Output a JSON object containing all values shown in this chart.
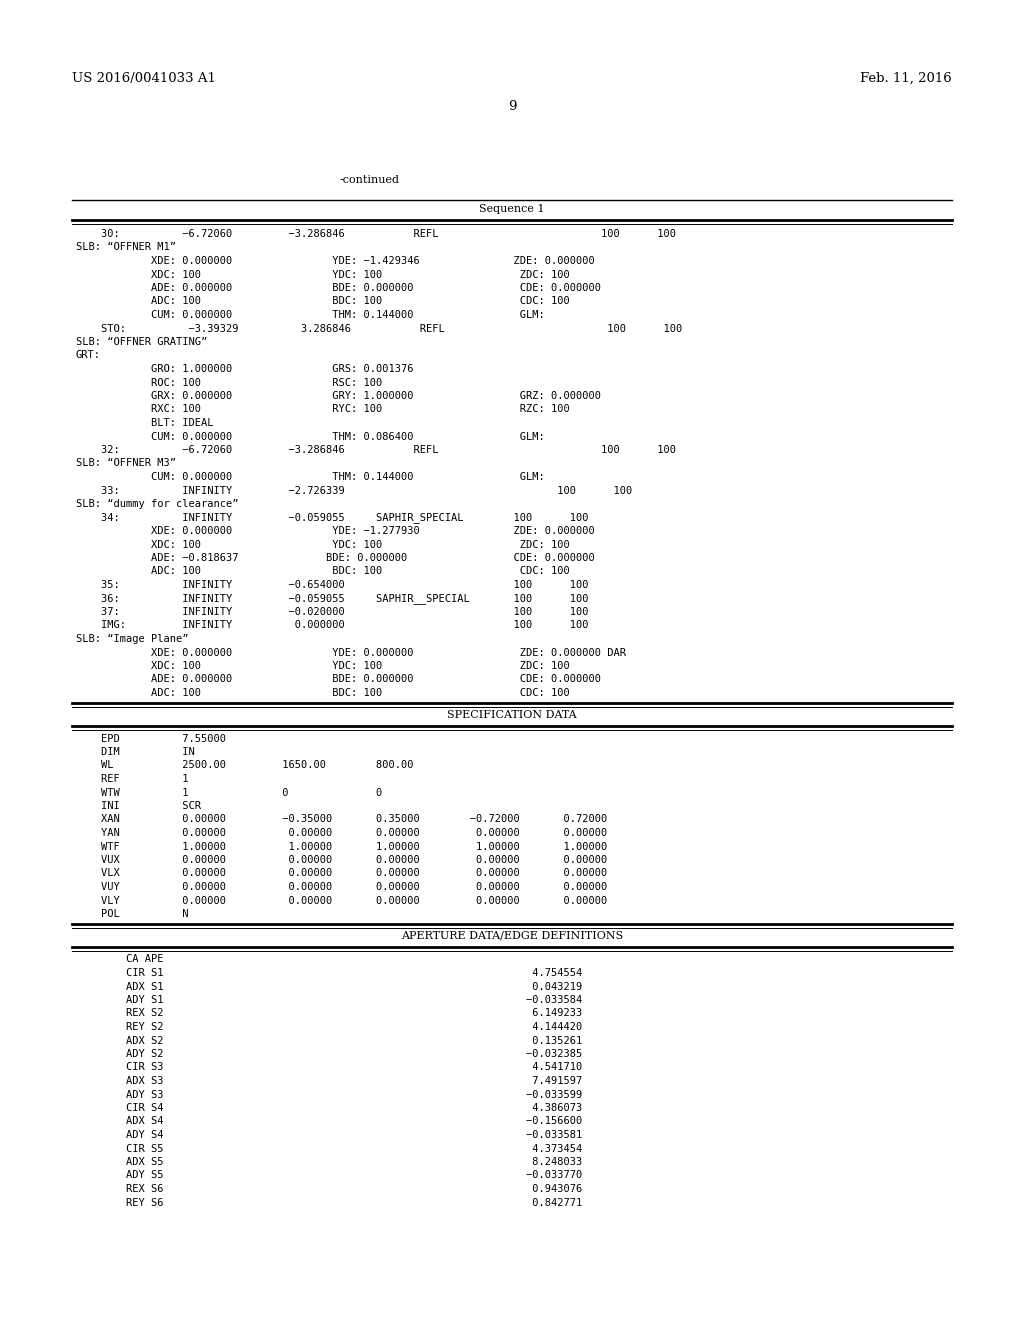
{
  "header_left": "US 2016/0041033 A1",
  "header_right": "Feb. 11, 2016",
  "page_number": "9",
  "continued_label": "-continued",
  "bg_color": "#ffffff",
  "text_color": "#000000",
  "section1_title": "Sequence 1",
  "content_lines": [
    [
      "    30:          −6.72060         −3.286846           REFL                          100      100",
      false
    ],
    [
      "SLB: “OFFNER M1”",
      false
    ],
    [
      "            XDE: 0.000000                YDE: −1.429346               ZDE: 0.000000",
      false
    ],
    [
      "            XDC: 100                     YDC: 100                      ZDC: 100",
      false
    ],
    [
      "            ADE: 0.000000                BDE: 0.000000                 CDE: 0.000000",
      false
    ],
    [
      "            ADC: 100                     BDC: 100                      CDC: 100",
      false
    ],
    [
      "            CUM: 0.000000                THM: 0.144000                 GLM:",
      false
    ],
    [
      "    STO:          −3.39329          3.286846           REFL                          100      100",
      false
    ],
    [
      "SLB: “OFFNER GRATING”",
      false
    ],
    [
      "GRT:",
      false
    ],
    [
      "            GRO: 1.000000                GRS: 0.001376",
      false
    ],
    [
      "            ROC: 100                     RSC: 100",
      false
    ],
    [
      "            GRX: 0.000000                GRY: 1.000000                 GRZ: 0.000000",
      false
    ],
    [
      "            RXC: 100                     RYC: 100                      RZC: 100",
      false
    ],
    [
      "            BLT: IDEAL",
      false
    ],
    [
      "            CUM: 0.000000                THM: 0.086400                 GLM:",
      false
    ],
    [
      "    32:          −6.72060         −3.286846           REFL                          100      100",
      false
    ],
    [
      "SLB: “OFFNER M3”",
      false
    ],
    [
      "            CUM: 0.000000                THM: 0.144000                 GLM:",
      false
    ],
    [
      "    33:          INFINITY         −2.726339                                  100      100",
      false
    ],
    [
      "SLB: “dummy for clearance”",
      false
    ],
    [
      "    34:          INFINITY         −0.059055     SAPHIR_SPECIAL        100      100",
      false
    ],
    [
      "            XDE: 0.000000                YDE: −1.277930               ZDE: 0.000000",
      false
    ],
    [
      "            XDC: 100                     YDC: 100                      ZDC: 100",
      false
    ],
    [
      "            ADE: −0.818637              BDE: 0.000000                 CDE: 0.000000",
      false
    ],
    [
      "            ADC: 100                     BDC: 100                      CDC: 100",
      false
    ],
    [
      "    35:          INFINITY         −0.654000                           100      100",
      false
    ],
    [
      "    36:          INFINITY         −0.059055     SAPHIR__SPECIAL       100      100",
      false
    ],
    [
      "    37:          INFINITY         −0.020000                           100      100",
      false
    ],
    [
      "    IMG:         INFINITY          0.000000                           100      100",
      false
    ],
    [
      "SLB: “Image Plane”",
      false
    ],
    [
      "            XDE: 0.000000                YDE: 0.000000                 ZDE: 0.000000 DAR",
      false
    ],
    [
      "            XDC: 100                     YDC: 100                      ZDC: 100",
      false
    ],
    [
      "            ADE: 0.000000                BDE: 0.000000                 CDE: 0.000000",
      false
    ],
    [
      "            ADC: 100                     BDC: 100                      CDC: 100",
      false
    ]
  ],
  "section2_title": "SPECIFICATION DATA",
  "spec_lines": [
    "    EPD          7.55000",
    "    DIM          IN",
    "    WL           2500.00         1650.00        800.00",
    "    REF          1",
    "    WTW          1               0              0",
    "    INI          SCR",
    "    XAN          0.00000         −0.35000       0.35000        −0.72000       0.72000",
    "    YAN          0.00000          0.00000       0.00000         0.00000       0.00000",
    "    WTF          1.00000          1.00000       1.00000         1.00000       1.00000",
    "    VUX          0.00000          0.00000       0.00000         0.00000       0.00000",
    "    VLX          0.00000          0.00000       0.00000         0.00000       0.00000",
    "    VUY          0.00000          0.00000       0.00000         0.00000       0.00000",
    "    VLY          0.00000          0.00000       0.00000         0.00000       0.00000",
    "    POL          N"
  ],
  "section3_title": "APERTURE DATA/EDGE DEFINITIONS",
  "aperture_lines": [
    "        CA APE",
    "        CIR S1                                                           4.754554",
    "        ADX S1                                                           0.043219",
    "        ADY S1                                                          −0.033584",
    "        REX S2                                                           6.149233",
    "        REY S2                                                           4.144420",
    "        ADX S2                                                           0.135261",
    "        ADY S2                                                          −0.032385",
    "        CIR S3                                                           4.541710",
    "        ADX S3                                                           7.491597",
    "        ADY S3                                                          −0.033599",
    "        CIR S4                                                           4.386073",
    "        ADX S4                                                          −0.156600",
    "        ADY S4                                                          −0.033581",
    "        CIR S5                                                           4.373454",
    "        ADX S5                                                           8.248033",
    "        ADY S5                                                          −0.033770",
    "        REX S6                                                           0.943076",
    "        REY S6                                                           0.842771"
  ]
}
